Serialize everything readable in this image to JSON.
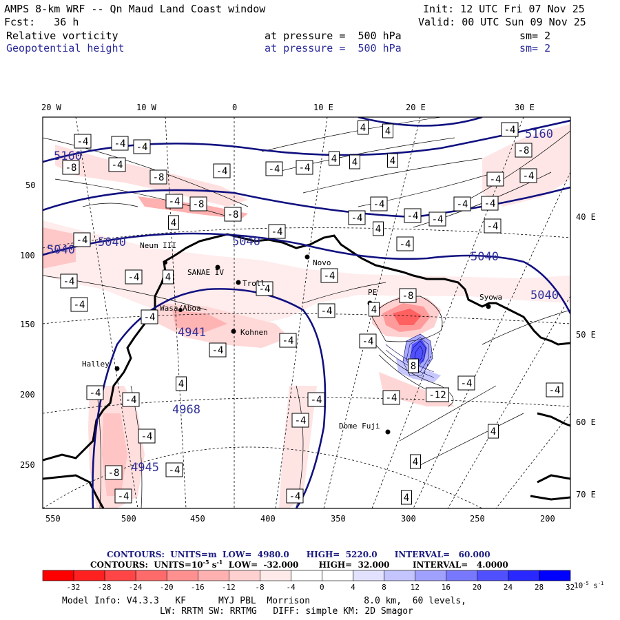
{
  "header": {
    "title": "AMPS 8-km WRF -- Qn Maud Land Coast window",
    "init": "Init: 12 UTC Fri 07 Nov 25",
    "fcst": "Fcst:   36 h",
    "valid": "Valid: 00 UTC Sun 09 Nov 25",
    "fields": [
      {
        "name": "Relative vorticity",
        "level": "at pressure =  500 hPa",
        "sm": "sm= 2"
      },
      {
        "name": "Geopotential height",
        "level": "at pressure =  500 hPa",
        "sm": "sm= 2"
      }
    ]
  },
  "axes": {
    "top_lon_labels": [
      "20 W",
      "10 W",
      "0",
      "10 E",
      "20 E",
      "30 E"
    ],
    "right_lon_labels": [
      "40 E",
      "50 E",
      "60 E",
      "70 E"
    ],
    "left_y_ticks": [
      "50",
      "100",
      "150",
      "200",
      "250"
    ],
    "bottom_x_ticks": [
      "550",
      "500",
      "450",
      "400",
      "350",
      "300",
      "250",
      "200"
    ]
  },
  "stations": [
    "Neum III",
    "SANAE IV",
    "Troll",
    "Novo",
    "PE",
    "Syowa",
    "Wasa/Aboa",
    "Kohnen",
    "Halley",
    "Dome Fuji"
  ],
  "height_contour_labels": [
    "5160",
    "5160",
    "5040",
    "5040",
    "5040",
    "5040",
    "5040",
    "4941",
    "4968",
    "4945"
  ],
  "vorticity_box_labels": [
    "4",
    "-4",
    "-8",
    "-12",
    "8"
  ],
  "contour_info": {
    "line1": "CONTOURS:  UNITS=m  LOW=  4980.0      HIGH=  5220.0      INTERVAL=   60.000",
    "line2_pre": "CONTOURS:  UNITS=10",
    "line2_sup": "-5",
    "line2_post": " s",
    "line2_sup2": "-1",
    "line2_rest": "  LOW=  -32.000       HIGH=  32.000        INTERVAL=   4.0000"
  },
  "colorbar": {
    "labels": [
      "-32",
      "-28",
      "-24",
      "-20",
      "-16",
      "-12",
      "-8",
      "-4",
      "0",
      "4",
      "8",
      "12",
      "16",
      "20",
      "24",
      "28",
      "32"
    ],
    "units": "10",
    "units_sup": "-5",
    "units_post": " s",
    "units_sup2": "-1",
    "colors": [
      "#ff0000",
      "#ff2020",
      "#ff4545",
      "#ff6a6a",
      "#ff9090",
      "#ffb0b0",
      "#ffd0d0",
      "#ffeaea",
      "#ffffff",
      "#ffffff",
      "#e2e2ff",
      "#c4c4ff",
      "#a0a0ff",
      "#7878ff",
      "#5050ff",
      "#2828ff",
      "#0000ff"
    ]
  },
  "footer": {
    "line1": "Model Info: V4.3.3   KF      MYJ PBL  Morrison          8.0 km,  60 levels,",
    "line2": "LW: RRTM SW: RRTMG   DIFF: simple KM: 2D Smagor"
  }
}
